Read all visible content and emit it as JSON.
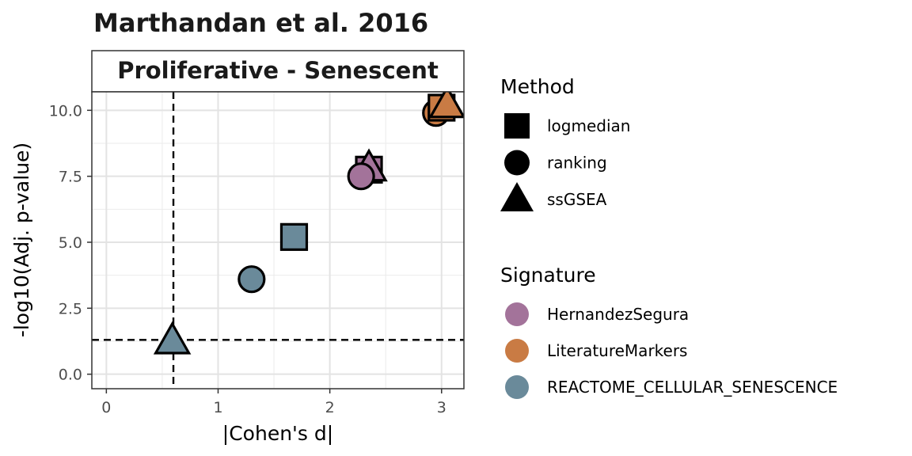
{
  "chart_data": {
    "type": "scatter",
    "title": "Marthandan et al. 2016",
    "facet_label": "Proliferative - Senescent",
    "xlabel": "|Cohen's d|",
    "ylabel": "-log10(Adj. p-value)",
    "xlim": [
      -0.13,
      3.2
    ],
    "ylim": [
      -0.55,
      10.7
    ],
    "x_ticks": [
      0,
      1,
      2,
      3
    ],
    "x_tick_labels": [
      "0",
      "1",
      "2",
      "3"
    ],
    "y_ticks": [
      0,
      2.5,
      5,
      7.5,
      10
    ],
    "y_tick_labels": [
      "0.0",
      "2.5",
      "5.0",
      "7.5",
      "10.0"
    ],
    "grid": true,
    "reference_lines": [
      {
        "orientation": "vertical",
        "value": 0.6,
        "style": "dashed"
      },
      {
        "orientation": "horizontal",
        "value": 1.3,
        "style": "dashed"
      }
    ],
    "points": [
      {
        "signature": "LiteratureMarkers",
        "method": "ranking",
        "x": 2.95,
        "y": 9.9
      },
      {
        "signature": "LiteratureMarkers",
        "method": "logmedian",
        "x": 3.0,
        "y": 10.1
      },
      {
        "signature": "LiteratureMarkers",
        "method": "ssGSEA",
        "x": 3.05,
        "y": 10.2
      },
      {
        "signature": "HernandezSegura",
        "method": "logmedian",
        "x": 2.35,
        "y": 7.75
      },
      {
        "signature": "HernandezSegura",
        "method": "ssGSEA",
        "x": 2.35,
        "y": 7.8
      },
      {
        "signature": "HernandezSegura",
        "method": "ranking",
        "x": 2.28,
        "y": 7.5
      },
      {
        "signature": "REACTOME_CELLULAR_SENESCENCE",
        "method": "logmedian",
        "x": 1.68,
        "y": 5.2
      },
      {
        "signature": "REACTOME_CELLULAR_SENESCENCE",
        "method": "ranking",
        "x": 1.3,
        "y": 3.6
      },
      {
        "signature": "REACTOME_CELLULAR_SENESCENCE",
        "method": "ssGSEA",
        "x": 0.59,
        "y": 1.25
      }
    ],
    "legend": {
      "placement": "right",
      "method": {
        "title": "Method",
        "items": [
          {
            "label": "logmedian",
            "shape": "square"
          },
          {
            "label": "ranking",
            "shape": "circle"
          },
          {
            "label": "ssGSEA",
            "shape": "triangle"
          }
        ]
      },
      "signature": {
        "title": "Signature",
        "items": [
          {
            "label": "HernandezSegura",
            "color": "#a3739a"
          },
          {
            "label": "LiteratureMarkers",
            "color": "#c97b44"
          },
          {
            "label": "REACTOME_CELLULAR_SENESCENCE",
            "color": "#6a8a9a"
          }
        ]
      }
    }
  }
}
